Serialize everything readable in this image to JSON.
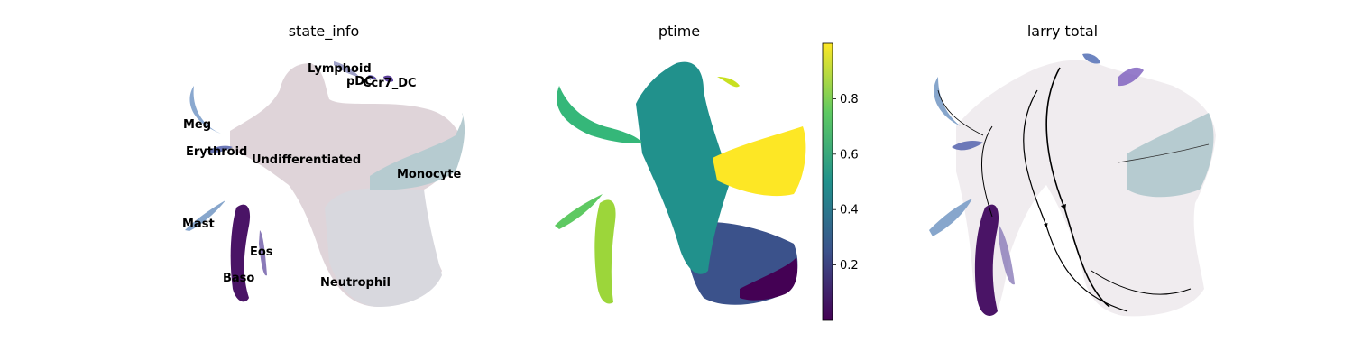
{
  "figure": {
    "panels": [
      {
        "title": "state_info"
      },
      {
        "title": "ptime"
      },
      {
        "title": "larry total"
      }
    ]
  },
  "colors": {
    "Undifferentiated": "#d9cdd2",
    "Neutrophil": "#d8d8de",
    "Monocyte": "#b6cbd0",
    "Baso": "#4a1466",
    "Eos": "#8a7ab8",
    "Mast": "#87a6cc",
    "Meg": "#8aa8cf",
    "Erythroid": "#6c78b8",
    "Lymphoid": "#a0a2c8",
    "pDC": "#5d4fa8",
    "Ccr7_DC": "#5b3f98"
  },
  "chart_data": [
    {
      "type": "scatter",
      "title": "state_info",
      "xlabel": "",
      "ylabel": "",
      "legend": "on data",
      "cluster_labels": [
        {
          "name": "Lymphoid"
        },
        {
          "name": "pDC"
        },
        {
          "name": "Ccr7_DC"
        },
        {
          "name": "Meg"
        },
        {
          "name": "Erythroid"
        },
        {
          "name": "Undifferentiated"
        },
        {
          "name": "Monocyte"
        },
        {
          "name": "Mast"
        },
        {
          "name": "Eos"
        },
        {
          "name": "Baso"
        },
        {
          "name": "Neutrophil"
        }
      ]
    },
    {
      "type": "scatter",
      "title": "ptime",
      "colormap": "viridis",
      "colorbar": {
        "range": [
          0.0,
          1.0
        ],
        "ticks": [
          "0.2",
          "0.4",
          "0.6",
          "0.8"
        ]
      }
    },
    {
      "type": "scatter",
      "title": "larry total",
      "overlay": "velocity streamlines with arrowheads"
    }
  ]
}
